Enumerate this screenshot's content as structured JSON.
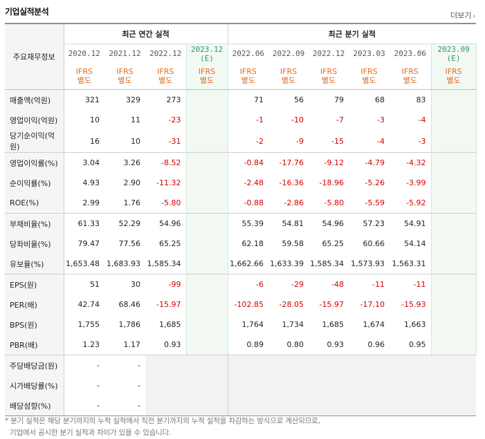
{
  "section": {
    "title": "기업실적분석",
    "more_label": "더보기"
  },
  "header": {
    "row_label": "주요재무정보",
    "annual_group": "최근 연간 실적",
    "quarter_group": "최근 분기 실적",
    "annual_periods": [
      {
        "date": "2020.12",
        "note": "",
        "ifrs": "IFRS",
        "basis": "별도",
        "estimate": false
      },
      {
        "date": "2021.12",
        "note": "",
        "ifrs": "IFRS",
        "basis": "별도",
        "estimate": false
      },
      {
        "date": "2022.12",
        "note": "",
        "ifrs": "IFRS",
        "basis": "별도",
        "estimate": false
      },
      {
        "date": "2023.12",
        "note": "(E)",
        "ifrs": "IFRS",
        "basis": "별도",
        "estimate": true
      }
    ],
    "quarter_periods": [
      {
        "date": "2022.06",
        "note": "",
        "ifrs": "IFRS",
        "basis": "별도",
        "estimate": false
      },
      {
        "date": "2022.09",
        "note": "",
        "ifrs": "IFRS",
        "basis": "별도",
        "estimate": false
      },
      {
        "date": "2022.12",
        "note": "",
        "ifrs": "IFRS",
        "basis": "별도",
        "estimate": false
      },
      {
        "date": "2023.03",
        "note": "",
        "ifrs": "IFRS",
        "basis": "별도",
        "estimate": false
      },
      {
        "date": "2023.06",
        "note": "",
        "ifrs": "IFRS",
        "basis": "별도",
        "estimate": false
      },
      {
        "date": "2023.09",
        "note": "(E)",
        "ifrs": "IFRS",
        "basis": "별도",
        "estimate": true
      }
    ]
  },
  "rows": [
    {
      "label": "매출액(억원)",
      "values": [
        "321",
        "329",
        "273",
        "",
        "71",
        "56",
        "79",
        "68",
        "83",
        ""
      ]
    },
    {
      "label": "영업이익(억원)",
      "values": [
        "10",
        "11",
        "-23",
        "",
        "-1",
        "-10",
        "-7",
        "-3",
        "-4",
        ""
      ]
    },
    {
      "label": "당기순이익(억원)",
      "values": [
        "16",
        "10",
        "-31",
        "",
        "-2",
        "-9",
        "-15",
        "-4",
        "-3",
        ""
      ]
    },
    {
      "label": "영업이익률(%)",
      "values": [
        "3.04",
        "3.26",
        "-8.52",
        "",
        "-0.84",
        "-17.76",
        "-9.12",
        "-4.79",
        "-4.32",
        ""
      ]
    },
    {
      "label": "순이익률(%)",
      "values": [
        "4.93",
        "2.90",
        "-11.32",
        "",
        "-2.48",
        "-16.36",
        "-18.96",
        "-5.26",
        "-3.99",
        ""
      ]
    },
    {
      "label": "ROE(%)",
      "values": [
        "2.99",
        "1.76",
        "-5.80",
        "",
        "-0.88",
        "-2.86",
        "-5.80",
        "-5.59",
        "-5.92",
        ""
      ]
    },
    {
      "label": "부채비율(%)",
      "values": [
        "61.33",
        "52.29",
        "54.96",
        "",
        "55.39",
        "54.81",
        "54.96",
        "57.23",
        "54.91",
        ""
      ]
    },
    {
      "label": "당좌비율(%)",
      "values": [
        "79.47",
        "77.56",
        "65.25",
        "",
        "62.18",
        "59.58",
        "65.25",
        "60.66",
        "54.14",
        ""
      ]
    },
    {
      "label": "유보율(%)",
      "values": [
        "1,653.48",
        "1,683.93",
        "1,585.34",
        "",
        "1,662.66",
        "1,633.39",
        "1,585.34",
        "1,573.93",
        "1,563.31",
        ""
      ]
    },
    {
      "label": "EPS(원)",
      "values": [
        "51",
        "30",
        "-99",
        "",
        "-6",
        "-29",
        "-48",
        "-11",
        "-11",
        ""
      ]
    },
    {
      "label": "PER(배)",
      "values": [
        "42.74",
        "68.46",
        "-15.97",
        "",
        "-102.85",
        "-28.05",
        "-15.97",
        "-17.10",
        "-15.93",
        ""
      ]
    },
    {
      "label": "BPS(원)",
      "values": [
        "1,755",
        "1,786",
        "1,685",
        "",
        "1,764",
        "1,734",
        "1,685",
        "1,674",
        "1,663",
        ""
      ]
    },
    {
      "label": "PBR(배)",
      "values": [
        "1.23",
        "1.17",
        "0.93",
        "",
        "0.89",
        "0.80",
        "0.93",
        "0.96",
        "0.95",
        ""
      ]
    },
    {
      "label": "주당배당금(원)",
      "values": [
        "-",
        "-",
        "",
        "",
        "",
        "",
        "",
        "",
        "",
        ""
      ]
    },
    {
      "label": "시가배당률(%)",
      "values": [
        "-",
        "-",
        "",
        "",
        "",
        "",
        "",
        "",
        "",
        ""
      ]
    },
    {
      "label": "배당성향(%)",
      "values": [
        "-",
        "-",
        "",
        "",
        "",
        "",
        "",
        "",
        "",
        ""
      ]
    }
  ],
  "footnote": {
    "line1": "* 분기 실적은 해당 분기까지의 누적 실적에서 직전 분기까지의 누적 실적을 차감하는 방식으로 계산되므로,",
    "line2": "기업에서 공시한 분기 실적과 차이가 있을 수 있습니다."
  },
  "colors": {
    "negative": "#d40000",
    "ifrs": "#e46a1d",
    "estimate": "#2b9a5e",
    "estimate_bg": "#f2f9f3"
  }
}
